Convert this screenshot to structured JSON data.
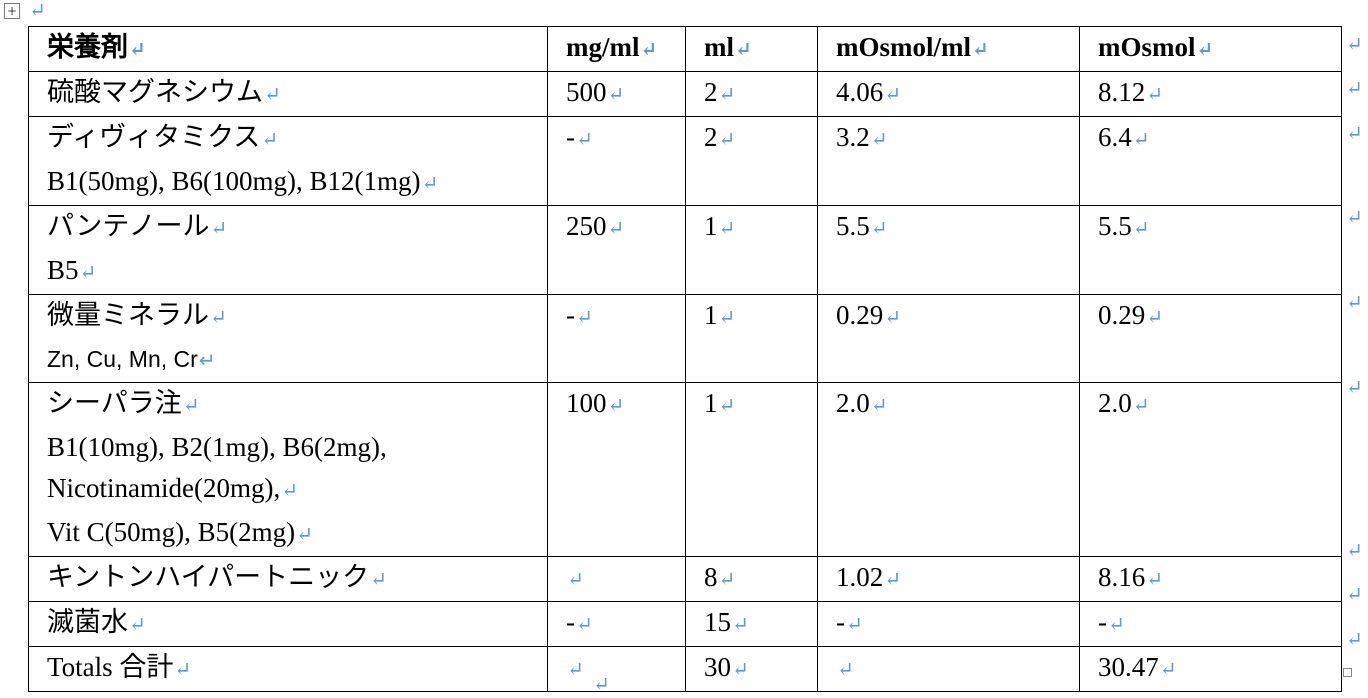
{
  "table": {
    "header": [
      "栄養剤",
      "mg/ml",
      "ml",
      "mOsmol/ml",
      "mOsmol"
    ],
    "rows": [
      [
        [
          "硫酸マグネシウム"
        ],
        "500",
        "2",
        "4.06",
        "8.12"
      ],
      [
        [
          "ディヴィタミクス",
          "B1(50mg), B6(100mg), B12(1mg)"
        ],
        "-",
        "2",
        "3.2",
        "6.4"
      ],
      [
        [
          "パンテノール",
          "B5"
        ],
        "250",
        "1",
        "5.5",
        "5.5"
      ],
      [
        [
          "微量ミネラル",
          "Zn, Cu, Mn, Cr"
        ],
        "-",
        "1",
        "0.29",
        "0.29"
      ],
      [
        [
          "シーパラ注",
          "B1(10mg), B2(1mg), B6(2mg), Nicotinamide(20mg),",
          "Vit C(50mg), B5(2mg)"
        ],
        "100",
        "1",
        "2.0",
        "2.0"
      ],
      [
        [
          "キントンハイパートニック"
        ],
        null,
        "8",
        "1.02",
        "8.16"
      ],
      [
        [
          "滅菌水"
        ],
        "-",
        "15",
        "-",
        "-"
      ],
      [
        [
          "Totals 合計"
        ],
        null,
        "30",
        null,
        "30.47"
      ]
    ]
  }
}
